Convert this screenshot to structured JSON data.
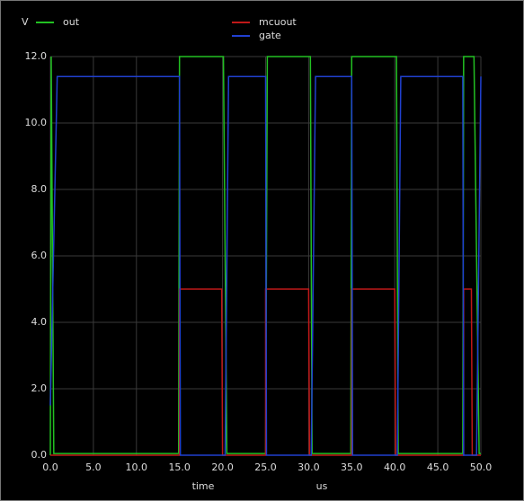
{
  "chart_data": {
    "type": "line",
    "ylabel": "V",
    "xlabel": "time",
    "xunit": "us",
    "xlim": [
      0,
      50
    ],
    "ylim": [
      0,
      12
    ],
    "xticks": [
      {
        "value": 0,
        "label": "0.0"
      },
      {
        "value": 5,
        "label": "5.0"
      },
      {
        "value": 10,
        "label": "10.0"
      },
      {
        "value": 15,
        "label": "15.0"
      },
      {
        "value": 20,
        "label": "20.0"
      },
      {
        "value": 25,
        "label": "25.0"
      },
      {
        "value": 30,
        "label": "30.0"
      },
      {
        "value": 35,
        "label": "35.0"
      },
      {
        "value": 40,
        "label": "40.0"
      },
      {
        "value": 45,
        "label": "45.0"
      },
      {
        "value": 50,
        "label": "50.0"
      }
    ],
    "yticks": [
      {
        "value": 0,
        "label": "0.0"
      },
      {
        "value": 2,
        "label": "2.0"
      },
      {
        "value": 4,
        "label": "4.0"
      },
      {
        "value": 6,
        "label": "6.0"
      },
      {
        "value": 8,
        "label": "8.0"
      },
      {
        "value": 10,
        "label": "10.0"
      },
      {
        "value": 12,
        "label": "12.0"
      }
    ],
    "grid": true,
    "series": [
      {
        "name": "out",
        "color": "#22c022",
        "x": [
          0,
          0.1,
          0.4,
          14.9,
          15.0,
          20.1,
          20.5,
          25.0,
          25.2,
          30.2,
          30.4,
          34.9,
          35.0,
          40.2,
          40.4,
          47.9,
          48.0,
          49.2,
          49.8,
          50
        ],
        "values": [
          0,
          12,
          0.05,
          0.05,
          12,
          12,
          0.05,
          0.05,
          12,
          12,
          0.05,
          0.05,
          12,
          12,
          0.05,
          0.05,
          12,
          12,
          0.05,
          0.05
        ]
      },
      {
        "name": "mcuout",
        "color": "#c01818",
        "x": [
          0,
          15.0,
          15.0,
          19.9,
          20.0,
          25.0,
          25.0,
          30.0,
          30.1,
          35.0,
          35.0,
          40.0,
          40.1,
          48.0,
          48.0,
          48.9,
          49.0,
          50
        ],
        "values": [
          0,
          0,
          5,
          5,
          0,
          0,
          5,
          5,
          0,
          0,
          5,
          5,
          0,
          0,
          5,
          5,
          0,
          0
        ]
      },
      {
        "name": "gate",
        "color": "#2040d0",
        "x": [
          0,
          0.8,
          15.0,
          15.1,
          20.3,
          20.7,
          25.0,
          25.1,
          30.3,
          30.8,
          35.0,
          35.1,
          40.3,
          40.7,
          47.9,
          48.0,
          49.5,
          50
        ],
        "values": [
          1.5,
          11.4,
          11.4,
          0,
          0,
          11.4,
          11.4,
          0,
          0,
          11.4,
          11.4,
          0,
          0,
          11.4,
          11.4,
          0,
          0,
          11.4
        ]
      }
    ]
  }
}
